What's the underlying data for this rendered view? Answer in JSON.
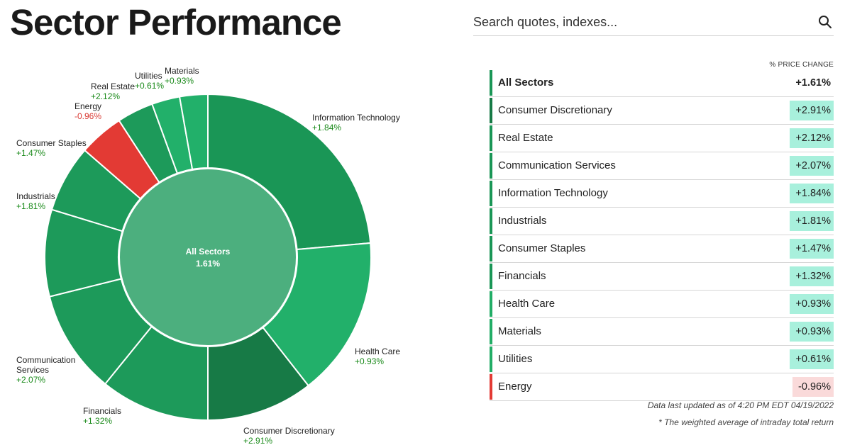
{
  "header": {
    "title": "Sector Performance",
    "search_placeholder": "Search quotes, indexes..."
  },
  "colors": {
    "positive_text": "#1a8a1a",
    "negative_text": "#d93a33",
    "positive_badge": "#a8f0dc",
    "negative_badge": "#fadada",
    "center_fill": "#4caf7e",
    "segment_greens": [
      "#1a9656",
      "#22ad66",
      "#177a46",
      "#1a9656",
      "#1a9656",
      "#1a9656",
      "#1a9656"
    ],
    "energy_red": "#e33a34"
  },
  "chart_data": {
    "type": "pie",
    "center_label": "All Sectors",
    "center_value": "1.61%",
    "slices": [
      {
        "name": "Information Technology",
        "change": "+1.84%"
      },
      {
        "name": "Health Care",
        "change": "+0.93%"
      },
      {
        "name": "Consumer Discretionary",
        "change": "+2.91%"
      },
      {
        "name": "Financials",
        "change": "+1.32%"
      },
      {
        "name": "Communication Services",
        "change": "+2.07%"
      },
      {
        "name": "Industrials",
        "change": "+1.81%"
      },
      {
        "name": "Consumer Staples",
        "change": "+1.47%"
      },
      {
        "name": "Energy",
        "change": "-0.96%"
      },
      {
        "name": "Real Estate",
        "change": "+2.12%"
      },
      {
        "name": "Utilities",
        "change": "+0.61%"
      },
      {
        "name": "Materials",
        "change": "+0.93%"
      }
    ]
  },
  "table": {
    "column_header": "% PRICE CHANGE",
    "rows": [
      {
        "name": "All Sectors",
        "change": "+1.61%",
        "bar_color": "#1a9656"
      },
      {
        "name": "Consumer Discretionary",
        "change": "+2.91%",
        "bar_color": "#177a46"
      },
      {
        "name": "Real Estate",
        "change": "+2.12%",
        "bar_color": "#1a9656"
      },
      {
        "name": "Communication Services",
        "change": "+2.07%",
        "bar_color": "#1a9656"
      },
      {
        "name": "Information Technology",
        "change": "+1.84%",
        "bar_color": "#1a9656"
      },
      {
        "name": "Industrials",
        "change": "+1.81%",
        "bar_color": "#1a9656"
      },
      {
        "name": "Consumer Staples",
        "change": "+1.47%",
        "bar_color": "#1a9656"
      },
      {
        "name": "Financials",
        "change": "+1.32%",
        "bar_color": "#1a9656"
      },
      {
        "name": "Health Care",
        "change": "+0.93%",
        "bar_color": "#22ad66"
      },
      {
        "name": "Materials",
        "change": "+0.93%",
        "bar_color": "#22ad66"
      },
      {
        "name": "Utilities",
        "change": "+0.61%",
        "bar_color": "#22ad66"
      },
      {
        "name": "Energy",
        "change": "-0.96%",
        "bar_color": "#e33a34"
      }
    ]
  },
  "footer": {
    "updated": "Data last updated as of 4:20 PM EDT 04/19/2022",
    "note": "* The weighted average of intraday total return"
  }
}
